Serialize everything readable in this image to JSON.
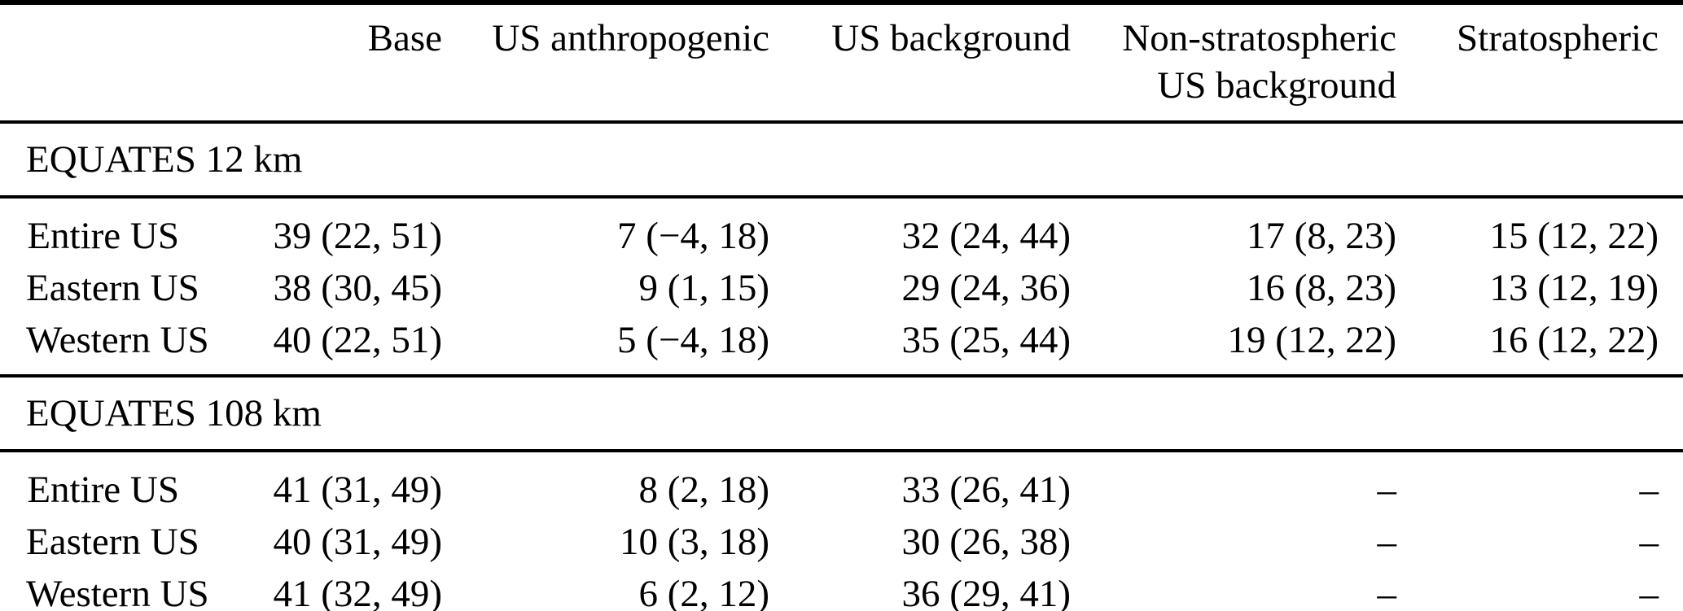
{
  "table": {
    "columns": [
      {
        "line1": "Base"
      },
      {
        "line1": "US anthropogenic"
      },
      {
        "line1": "US background"
      },
      {
        "line1": "Non-stratospheric",
        "line2": "US background"
      },
      {
        "line1": "Stratospheric"
      }
    ],
    "sections": [
      {
        "title": "EQUATES 12 km",
        "rows": [
          {
            "label": "Entire US",
            "values": [
              "39 (22, 51)",
              "7 (−4, 18)",
              "32 (24, 44)",
              "17 (8, 23)",
              "15 (12, 22)"
            ]
          },
          {
            "label": "Eastern US",
            "values": [
              "38 (30, 45)",
              "9 (1, 15)",
              "29 (24, 36)",
              "16 (8, 23)",
              "13 (12, 19)"
            ]
          },
          {
            "label": "Western US",
            "values": [
              "40 (22, 51)",
              "5 (−4, 18)",
              "35 (25, 44)",
              "19 (12, 22)",
              "16 (12, 22)"
            ]
          }
        ]
      },
      {
        "title": "EQUATES 108 km",
        "rows": [
          {
            "label": "Entire US",
            "values": [
              "41 (31, 49)",
              "8 (2, 18)",
              "33 (26, 41)",
              "–",
              "–"
            ]
          },
          {
            "label": "Eastern US",
            "values": [
              "40 (31, 49)",
              "10 (3, 18)",
              "30 (26, 38)",
              "–",
              "–"
            ]
          },
          {
            "label": "Western US",
            "values": [
              "41 (32, 49)",
              "6 (2, 12)",
              "36 (29, 41)",
              "–",
              "–"
            ]
          }
        ]
      }
    ]
  }
}
